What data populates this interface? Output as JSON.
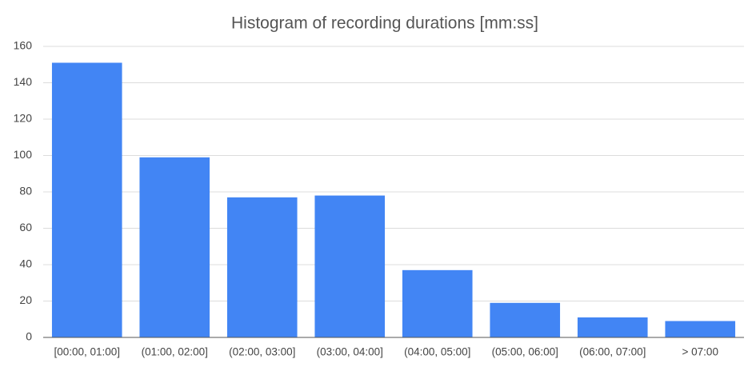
{
  "chart_data": {
    "type": "bar",
    "title": "Histogram of recording durations [mm:ss]",
    "categories": [
      "[00:00, 01:00]",
      "(01:00, 02:00]",
      "(02:00, 03:00]",
      "(03:00, 04:00]",
      "(04:00, 05:00]",
      "(05:00, 06:00]",
      "(06:00, 07:00]",
      "> 07:00"
    ],
    "values": [
      151,
      99,
      77,
      78,
      37,
      19,
      11,
      9
    ],
    "color": "#4285f4",
    "ylim": [
      0,
      160
    ],
    "yticks": [
      0,
      20,
      40,
      60,
      80,
      100,
      120,
      140,
      160
    ],
    "grid": true
  }
}
